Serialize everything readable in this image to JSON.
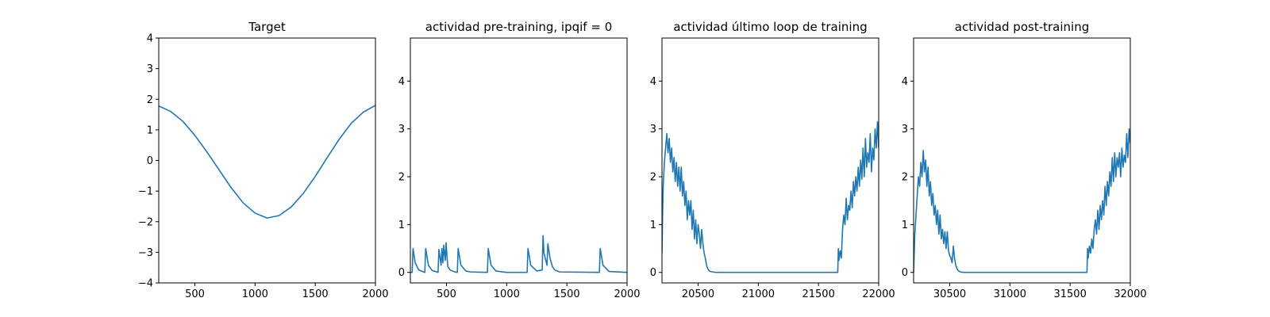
{
  "chart_data": [
    {
      "type": "line",
      "title": "Target",
      "xlabel": "",
      "ylabel": "",
      "xlim": [
        200,
        2000
      ],
      "ylim": [
        -4,
        4
      ],
      "xticks": [
        500,
        1000,
        1500,
        2000
      ],
      "yticks": [
        -4,
        -3,
        -2,
        -1,
        0,
        1,
        2,
        3,
        4
      ],
      "xtick_labels": [
        "500",
        "1000",
        "1500",
        "2000"
      ],
      "ytick_labels": [
        "−4",
        "−3",
        "−2",
        "−1",
        "0",
        "1",
        "2",
        "3",
        "4"
      ],
      "color": "#1f77b4",
      "x": [
        200,
        300,
        400,
        500,
        600,
        700,
        800,
        900,
        1000,
        1100,
        1200,
        1300,
        1400,
        1500,
        1600,
        1700,
        1800,
        1900,
        2000
      ],
      "y": [
        1.78,
        1.6,
        1.28,
        0.82,
        0.28,
        -0.3,
        -0.88,
        -1.38,
        -1.72,
        -1.88,
        -1.8,
        -1.52,
        -1.08,
        -0.52,
        0.1,
        0.7,
        1.22,
        1.58,
        1.8
      ]
    },
    {
      "type": "line",
      "title": "actividad pre-training, ipqif = 0",
      "xlabel": "",
      "ylabel": "",
      "xlim": [
        200,
        2000
      ],
      "ylim": [
        -0.22,
        4.9
      ],
      "xticks": [
        500,
        1000,
        1500,
        2000
      ],
      "yticks": [
        0,
        1,
        2,
        3,
        4
      ],
      "xtick_labels": [
        "500",
        "1000",
        "1500",
        "2000"
      ],
      "ytick_labels": [
        "0",
        "1",
        "2",
        "3",
        "4"
      ],
      "color": "#1f77b4",
      "x": [
        200,
        215,
        222,
        240,
        270,
        310,
        320,
        327,
        350,
        380,
        420,
        430,
        437,
        455,
        462,
        470,
        477,
        490,
        497,
        505,
        512,
        530,
        570,
        590,
        597,
        620,
        660,
        700,
        840,
        847,
        870,
        910,
        1000,
        1170,
        1177,
        1200,
        1250,
        1295,
        1302,
        1310,
        1325,
        1335,
        1342,
        1360,
        1380,
        1400,
        1440,
        1770,
        1777,
        1800,
        1850,
        2000
      ],
      "y": [
        0,
        0,
        0.5,
        0.2,
        0.05,
        0.01,
        0,
        0.5,
        0.15,
        0.04,
        0.01,
        0,
        0.48,
        0.15,
        0.5,
        0.2,
        0.57,
        0.25,
        0.62,
        0.3,
        0.12,
        0.05,
        0.01,
        0,
        0.5,
        0.15,
        0.03,
        0.01,
        0,
        0.5,
        0.15,
        0.03,
        0,
        0,
        0.5,
        0.15,
        0.03,
        0.05,
        0.77,
        0.4,
        0.25,
        0.15,
        0.6,
        0.3,
        0.12,
        0.05,
        0.01,
        0,
        0.5,
        0.15,
        0.02,
        0
      ]
    },
    {
      "type": "line",
      "title": "actividad último loop de training",
      "xlabel": "",
      "ylabel": "",
      "xlim": [
        20200,
        22000
      ],
      "ylim": [
        -0.22,
        4.9
      ],
      "xticks": [
        20500,
        21000,
        21500,
        22000
      ],
      "yticks": [
        0,
        1,
        2,
        3,
        4
      ],
      "xtick_labels": [
        "20500",
        "21000",
        "21500",
        "22000"
      ],
      "ytick_labels": [
        "0",
        "1",
        "2",
        "3",
        "4"
      ],
      "color": "#1f77b4",
      "x": [
        20200,
        20205,
        20210,
        20220,
        20230,
        20240,
        20250,
        20260,
        20270,
        20280,
        20290,
        20300,
        20310,
        20320,
        20330,
        20340,
        20350,
        20360,
        20370,
        20380,
        20390,
        20400,
        20410,
        20420,
        20430,
        20440,
        20450,
        20460,
        20470,
        20480,
        20490,
        20500,
        20510,
        20520,
        20530,
        20540,
        20550,
        20560,
        20570,
        20580,
        20590,
        20600,
        20620,
        20650,
        21660,
        21665,
        21670,
        21680,
        21690,
        21700,
        21710,
        21720,
        21730,
        21740,
        21750,
        21760,
        21770,
        21780,
        21790,
        21800,
        21810,
        21820,
        21830,
        21840,
        21850,
        21860,
        21870,
        21880,
        21890,
        21900,
        21910,
        21920,
        21930,
        21940,
        21950,
        21960,
        21970,
        21980,
        21990,
        22000
      ],
      "y": [
        0.4,
        1.2,
        1.8,
        2.3,
        2.6,
        2.9,
        2.5,
        2.8,
        2.3,
        2.6,
        2.1,
        2.4,
        1.9,
        2.3,
        1.8,
        2.2,
        1.7,
        2.2,
        1.6,
        1.9,
        1.4,
        1.7,
        1.1,
        1.5,
        1.2,
        1.5,
        0.9,
        1.3,
        0.7,
        1.1,
        0.6,
        1.0,
        0.8,
        0.5,
        0.9,
        0.6,
        0.4,
        0.3,
        0.15,
        0.08,
        0.04,
        0.02,
        0.01,
        0,
        0,
        0.5,
        0.25,
        0.45,
        0.3,
        0.9,
        1.2,
        1.0,
        1.55,
        1.1,
        1.4,
        1.3,
        1.7,
        1.35,
        1.9,
        1.6,
        2.0,
        1.7,
        2.2,
        1.8,
        2.35,
        1.95,
        2.6,
        2.0,
        2.8,
        2.2,
        2.5,
        2.3,
        2.9,
        2.1,
        2.6,
        2.35,
        3.0,
        2.6,
        3.15,
        2.6
      ]
    },
    {
      "type": "line",
      "title": "actividad post-training",
      "xlabel": "",
      "ylabel": "",
      "xlim": [
        30200,
        32000
      ],
      "ylim": [
        -0.22,
        4.9
      ],
      "xticks": [
        30500,
        31000,
        31500,
        32000
      ],
      "yticks": [
        0,
        1,
        2,
        3,
        4
      ],
      "xtick_labels": [
        "30500",
        "31000",
        "31500",
        "32000"
      ],
      "ytick_labels": [
        "0",
        "1",
        "2",
        "3",
        "4"
      ],
      "color": "#1f77b4",
      "x": [
        30200,
        30210,
        30220,
        30230,
        30240,
        30250,
        30260,
        30270,
        30280,
        30290,
        30300,
        30310,
        30320,
        30330,
        30340,
        30350,
        30360,
        30370,
        30380,
        30390,
        30400,
        30410,
        30420,
        30430,
        30440,
        30450,
        30460,
        30470,
        30480,
        30490,
        30500,
        30510,
        30520,
        30530,
        30540,
        30550,
        30560,
        30570,
        30580,
        30590,
        30600,
        30620,
        30650,
        31640,
        31645,
        31650,
        31660,
        31670,
        31680,
        31690,
        31700,
        31710,
        31720,
        31730,
        31740,
        31750,
        31760,
        31770,
        31780,
        31790,
        31800,
        31810,
        31820,
        31830,
        31840,
        31850,
        31860,
        31870,
        31880,
        31890,
        31900,
        31910,
        31920,
        31930,
        31940,
        31950,
        31960,
        31970,
        31980,
        31990,
        32000
      ],
      "y": [
        0,
        0.8,
        1.2,
        1.6,
        2.0,
        1.8,
        2.3,
        2.0,
        2.55,
        2.1,
        2.35,
        1.8,
        2.2,
        1.6,
        1.9,
        1.4,
        1.65,
        1.2,
        1.4,
        1.0,
        1.3,
        0.8,
        1.2,
        0.7,
        0.9,
        0.6,
        0.85,
        0.5,
        0.85,
        0.45,
        0.35,
        0.3,
        0.2,
        0.55,
        0.3,
        0.15,
        0.08,
        0.04,
        0.02,
        0.01,
        0.005,
        0,
        0,
        0,
        0.5,
        0.3,
        0.55,
        0.4,
        0.7,
        0.5,
        0.9,
        1.1,
        0.8,
        1.3,
        0.9,
        1.4,
        1.1,
        1.5,
        1.2,
        1.8,
        1.4,
        1.9,
        1.6,
        2.1,
        1.8,
        2.4,
        1.9,
        2.5,
        2.0,
        2.4,
        2.2,
        2.5,
        2.0,
        2.6,
        2.2,
        2.45,
        2.3,
        2.9,
        2.4,
        3.0,
        2.7
      ]
    }
  ]
}
